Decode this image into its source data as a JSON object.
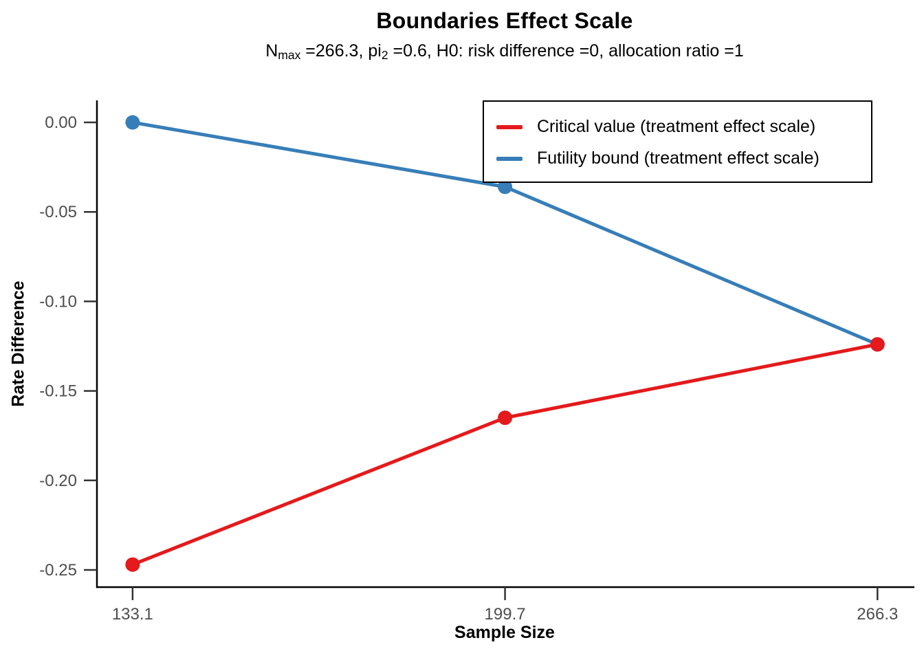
{
  "page": {
    "background": "#FFFFFF"
  },
  "chart_data": {
    "type": "line",
    "title": "Boundaries Effect Scale",
    "subtitle_plain": "Nmax =266.3, pi2 =0.6, H0: risk difference =0, allocation ratio =1",
    "subtitle_parts": [
      {
        "text": "N"
      },
      {
        "sub": "max"
      },
      {
        "text": " =266.3, pi"
      },
      {
        "sub": "2"
      },
      {
        "text": " =0.6, H0: risk difference =0, allocation ratio =1"
      }
    ],
    "xlabel": "Sample Size",
    "ylabel": "Rate Difference",
    "x": [
      133.1,
      199.7,
      266.3
    ],
    "x_tick_labels": [
      "133.1",
      "199.7",
      "266.3"
    ],
    "y_ticks": [
      0,
      -0.05,
      -0.1,
      -0.15,
      -0.2,
      -0.25
    ],
    "y_tick_labels": [
      "0.00",
      "-0.05",
      "-0.10",
      "-0.15",
      "-0.20",
      "-0.25"
    ],
    "xlim": [
      126.6,
      272.9
    ],
    "ylim": [
      -0.2596,
      0.0123
    ],
    "series": [
      {
        "name": "Critical value (treatment effect scale)",
        "slug": "critical-value",
        "color": "#E41A1C",
        "values": [
          -0.247,
          -0.165,
          -0.124
        ]
      },
      {
        "name": "Futility bound (treatment effect scale)",
        "slug": "futility-bound",
        "color": "#377EB8",
        "values": [
          0.0,
          -0.036,
          -0.124
        ]
      }
    ],
    "legend_position": "top-right",
    "grid": false,
    "colors": {
      "axis": "#000000",
      "tick": "#333333",
      "tick_label": "#4D4D4D",
      "text": "#000000",
      "background": "#FFFFFF"
    }
  }
}
